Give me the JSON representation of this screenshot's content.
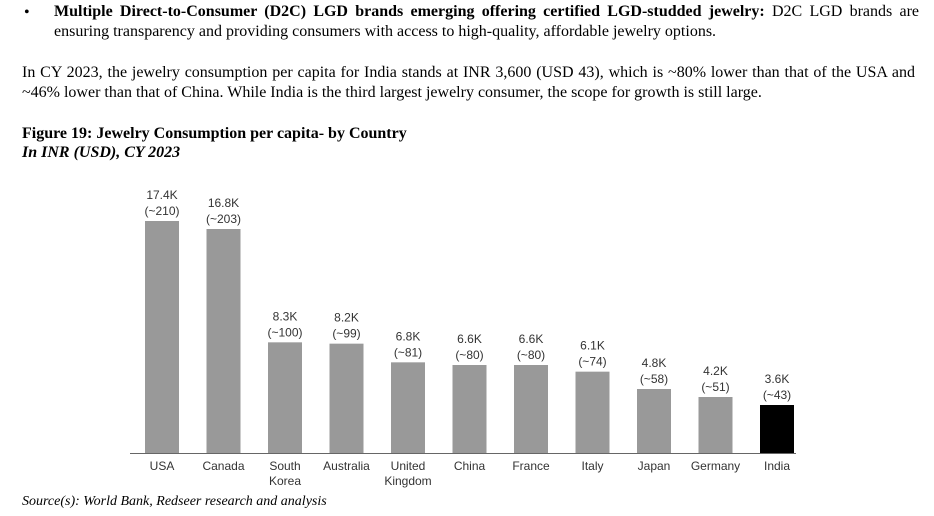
{
  "bullet": {
    "symbol": "•",
    "bold": "Multiple Direct-to-Consumer (D2C) LGD brands emerging offering certified LGD-studded jewelry:",
    "text": " D2C LGD brands are ensuring transparency and providing consumers with access to high-quality, affordable jewelry options."
  },
  "paragraph": "In CY 2023, the jewelry consumption per capita for India stands at INR 3,600 (USD 43), which is ~80% lower than that of the USA and ~46% lower than that of China. While India is the third largest jewelry consumer, the scope for growth is still large.",
  "figure": {
    "title": "Figure 19: Jewelry Consumption per capita- by Country",
    "subtitle": "In INR (USD), CY 2023"
  },
  "source": "Source(s): World Bank, Redseer research and analysis",
  "chart_data": {
    "type": "bar",
    "title": "Figure 19: Jewelry Consumption per capita- by Country",
    "subtitle": "In INR (USD), CY 2023",
    "unit": "INR thousand",
    "categories": [
      [
        "USA"
      ],
      [
        "Canada"
      ],
      [
        "South",
        "Korea"
      ],
      [
        "Australia"
      ],
      [
        "United",
        "Kingdom"
      ],
      [
        "China"
      ],
      [
        "France"
      ],
      [
        "Italy"
      ],
      [
        "Japan"
      ],
      [
        "Germany"
      ],
      [
        "India"
      ]
    ],
    "values": [
      17.4,
      16.8,
      8.3,
      8.2,
      6.8,
      6.6,
      6.6,
      6.1,
      4.8,
      4.2,
      3.6
    ],
    "value_labels": [
      "17.4K",
      "16.8K",
      "8.3K",
      "8.2K",
      "6.8K",
      "6.6K",
      "6.6K",
      "6.1K",
      "4.8K",
      "4.2K",
      "3.6K"
    ],
    "usd_labels": [
      "(~210)",
      "(~203)",
      "(~100)",
      "(~99)",
      "(~81)",
      "(~80)",
      "(~80)",
      "(~74)",
      "(~58)",
      "(~51)",
      "(~43)"
    ],
    "colors": {
      "default": "#999999",
      "highlight": "#000000",
      "axis": "#666666"
    },
    "highlight_index": 10,
    "ylim": [
      0,
      17.4
    ],
    "grid": false,
    "legend": "none"
  }
}
